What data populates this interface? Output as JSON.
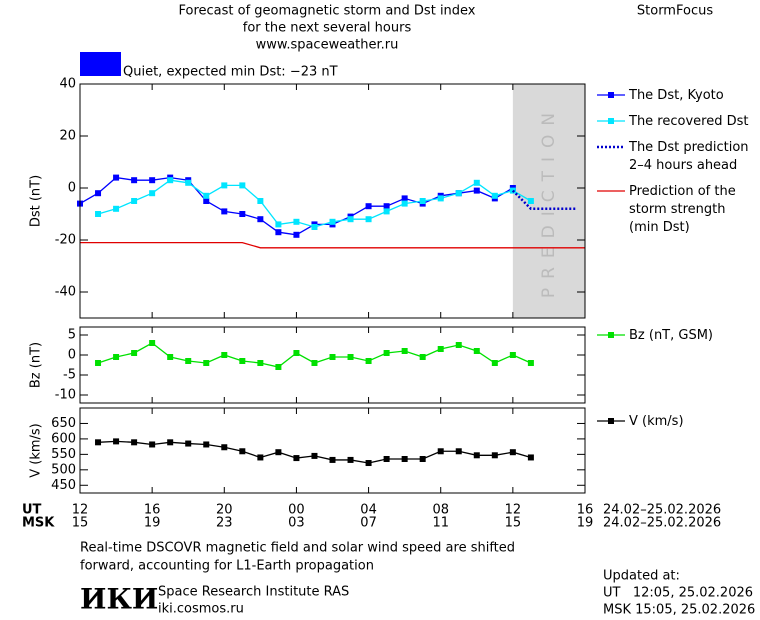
{
  "header": {
    "title": [
      "Forecast of geomagnetic storm and Dst index",
      "for the next several hours",
      "www.spaceweather.ru"
    ],
    "brand": "StormFocus"
  },
  "chart_data": [
    {
      "type": "line",
      "ylabel": "Dst (nT)",
      "xlim": [
        0,
        28
      ],
      "ylim": [
        -50,
        40
      ],
      "yticks": [
        -40,
        -20,
        0,
        20,
        40
      ],
      "status": {
        "label": "Quiet, expected min Dst: −23 nT",
        "color": "#0000ff"
      },
      "prediction_band": [
        24,
        28
      ],
      "prediction_label": "PREDICTION",
      "series": [
        {
          "name": "The Dst, Kyoto",
          "color": "#0000ff",
          "style": "solid",
          "markers": true,
          "x": [
            0,
            1,
            2,
            3,
            4,
            5,
            6,
            7,
            8,
            9,
            10,
            11,
            12,
            13,
            14,
            15,
            16,
            17,
            18,
            19,
            20,
            21,
            22,
            23,
            24
          ],
          "values": [
            -6,
            -2,
            4,
            3,
            3,
            4,
            3,
            -5,
            -9,
            -10,
            -12,
            -17,
            -18,
            -14,
            -14,
            -11,
            -7,
            -7,
            -4,
            -6,
            -3,
            -2,
            -1,
            -4,
            0
          ]
        },
        {
          "name": "The recovered Dst",
          "color": "#00e5ff",
          "style": "solid",
          "markers": true,
          "x": [
            1,
            2,
            3,
            4,
            5,
            6,
            7,
            8,
            9,
            10,
            11,
            12,
            13,
            14,
            15,
            16,
            17,
            18,
            19,
            20,
            21,
            22,
            23,
            24,
            25
          ],
          "values": [
            -10,
            -8,
            -5,
            -2,
            3,
            2,
            -3,
            1,
            1,
            -5,
            -14,
            -13,
            -15,
            -13,
            -12,
            -12,
            -9,
            -6,
            -5,
            -4,
            -2,
            2,
            -3,
            -1,
            -5
          ]
        },
        {
          "name": "The Dst prediction\n2–4 hours ahead",
          "color": "#0000cc",
          "style": "dotted",
          "markers": false,
          "x": [
            24,
            25,
            26,
            27.5
          ],
          "values": [
            -1,
            -8,
            -8,
            -8
          ]
        },
        {
          "name": "Prediction of the\nstorm strength\n(min Dst)",
          "color": "#e00000",
          "style": "solid",
          "markers": false,
          "x": [
            0,
            9,
            10,
            28
          ],
          "values": [
            -21,
            -21,
            -23,
            -23
          ]
        }
      ]
    },
    {
      "type": "line",
      "ylabel": "Bz (nT)",
      "xlim": [
        0,
        28
      ],
      "ylim": [
        -12,
        7
      ],
      "yticks": [
        -10,
        -5,
        0,
        5
      ],
      "series": [
        {
          "name": "Bz (nT, GSM)",
          "color": "#00e000",
          "style": "solid",
          "markers": true,
          "x": [
            1,
            2,
            3,
            4,
            5,
            6,
            7,
            8,
            9,
            10,
            11,
            12,
            13,
            14,
            15,
            16,
            17,
            18,
            19,
            20,
            21,
            22,
            23,
            24,
            25
          ],
          "values": [
            -2,
            -0.5,
            0.5,
            3,
            -0.5,
            -1.5,
            -2,
            0,
            -1.5,
            -2,
            -3,
            0.5,
            -2,
            -0.5,
            -0.5,
            -1.5,
            0.5,
            1,
            -0.5,
            1.5,
            2.5,
            1,
            -2,
            0,
            -2
          ]
        }
      ]
    },
    {
      "type": "line",
      "ylabel": "V (km/s)",
      "xlim": [
        0,
        28
      ],
      "ylim": [
        425,
        700
      ],
      "yticks": [
        450,
        500,
        550,
        600,
        650
      ],
      "xticks": [
        {
          "value": 0,
          "label": "12"
        },
        {
          "value": 4,
          "label": "16"
        },
        {
          "value": 8,
          "label": "20"
        },
        {
          "value": 12,
          "label": "00"
        },
        {
          "value": 16,
          "label": "04"
        },
        {
          "value": 20,
          "label": "08"
        },
        {
          "value": 24,
          "label": "12"
        },
        {
          "value": 28,
          "label": "16"
        }
      ],
      "x2_tick_labels": [
        "15",
        "19",
        "23",
        "03",
        "07",
        "11",
        "15",
        "19"
      ],
      "x_row_labels": [
        "UT",
        "MSK"
      ],
      "date_ranges": [
        "24.02–25.02.2026",
        "24.02–25.02.2026"
      ],
      "series": [
        {
          "name": "V (km/s)",
          "color": "#000000",
          "style": "solid",
          "markers": true,
          "x": [
            1,
            2,
            3,
            4,
            5,
            6,
            7,
            8,
            9,
            10,
            11,
            12,
            13,
            14,
            15,
            16,
            17,
            18,
            19,
            20,
            21,
            22,
            23,
            24,
            25
          ],
          "values": [
            589,
            592,
            589,
            582,
            589,
            585,
            582,
            573,
            560,
            540,
            557,
            538,
            545,
            532,
            532,
            522,
            535,
            535,
            535,
            560,
            560,
            547,
            547,
            557,
            540
          ]
        }
      ]
    }
  ],
  "footer": {
    "note": [
      "Real-time DSCOVR magnetic field and solar wind speed are shifted",
      "forward, accounting for L1-Earth propagation"
    ],
    "logo": "ИКИ",
    "institute": "Space Research Institute RAS",
    "site": "iki.cosmos.ru",
    "updated": [
      "Updated at:",
      "UT   12:05, 25.02.2026",
      "MSK 15:05, 25.02.2026"
    ]
  }
}
